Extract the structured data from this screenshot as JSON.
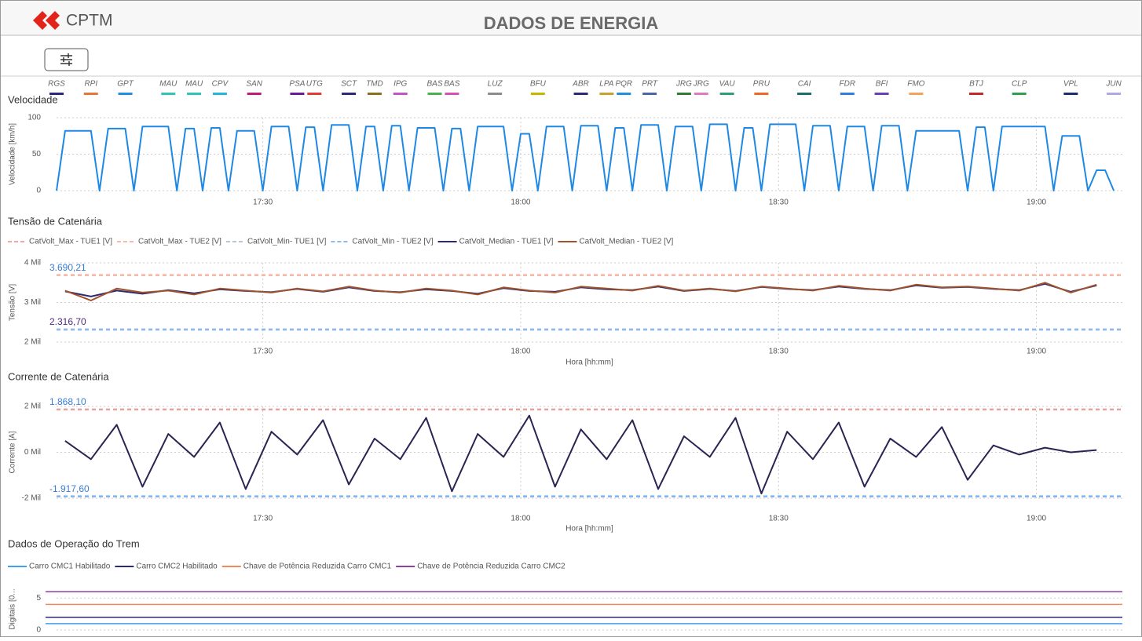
{
  "header": {
    "logo_text": "CPTM",
    "title": "DADOS DE ENERGIA"
  },
  "chart_data": [
    {
      "type": "line",
      "title": "Velocidade",
      "ylabel": "Velocidade [km/h]",
      "color": "#1e88e5",
      "grid": true,
      "xlim": [
        "17:06",
        "19:10"
      ],
      "xticks": [
        "17:30",
        "18:00",
        "18:30",
        "19:00"
      ],
      "ylim": [
        0,
        100
      ],
      "yticks": [
        0,
        50,
        100
      ],
      "x": [
        "17:06",
        "17:07",
        "17:10",
        "17:11",
        "17:12",
        "17:14",
        "17:15",
        "17:16",
        "17:19",
        "17:20",
        "17:21",
        "17:22",
        "17:23",
        "17:24",
        "17:25",
        "17:26",
        "17:27",
        "17:29",
        "17:30",
        "17:31",
        "17:33",
        "17:34",
        "17:35",
        "17:36",
        "17:37",
        "17:38",
        "17:40",
        "17:41",
        "17:42",
        "17:43",
        "17:44",
        "17:45",
        "17:46",
        "17:47",
        "17:48",
        "17:50",
        "17:51",
        "17:52",
        "17:53",
        "17:54",
        "17:55",
        "17:58",
        "17:59",
        "18:00",
        "18:01",
        "18:02",
        "18:03",
        "18:05",
        "18:06",
        "18:07",
        "18:09",
        "18:10",
        "18:11",
        "18:12",
        "18:13",
        "18:14",
        "18:16",
        "18:17",
        "18:18",
        "18:20",
        "18:21",
        "18:22",
        "18:24",
        "18:25",
        "18:26",
        "18:27",
        "18:28",
        "18:29",
        "18:32",
        "18:33",
        "18:34",
        "18:36",
        "18:37",
        "18:38",
        "18:40",
        "18:41",
        "18:42",
        "18:44",
        "18:45",
        "18:46",
        "18:51",
        "18:52",
        "18:53",
        "18:54",
        "18:55",
        "18:56",
        "19:01",
        "19:02",
        "19:03",
        "19:05",
        "19:06",
        "19:07",
        "19:08",
        "19:09"
      ],
      "values": [
        0,
        82,
        82,
        0,
        85,
        85,
        0,
        88,
        88,
        0,
        85,
        85,
        0,
        86,
        86,
        0,
        82,
        82,
        0,
        88,
        88,
        0,
        87,
        87,
        0,
        90,
        90,
        0,
        88,
        88,
        0,
        89,
        89,
        0,
        86,
        86,
        0,
        85,
        85,
        0,
        88,
        88,
        0,
        78,
        78,
        0,
        88,
        88,
        0,
        89,
        89,
        0,
        86,
        86,
        0,
        90,
        90,
        0,
        88,
        88,
        0,
        91,
        91,
        0,
        86,
        86,
        0,
        91,
        91,
        0,
        89,
        89,
        0,
        88,
        88,
        0,
        89,
        89,
        0,
        82,
        82,
        0,
        87,
        87,
        0,
        88,
        88,
        0,
        75,
        75,
        0,
        28,
        28,
        0
      ],
      "stations": [
        {
          "label": "RGS",
          "x": "17:06",
          "color": "#2b2a7a"
        },
        {
          "label": "RPI",
          "x": "17:10",
          "color": "#e8743b"
        },
        {
          "label": "GPT",
          "x": "17:14",
          "color": "#1f8fe0"
        },
        {
          "label": "MAU",
          "x": "17:19",
          "color": "#2ec4b6"
        },
        {
          "label": "MAU",
          "x": "17:22",
          "color": "#2ec4b6"
        },
        {
          "label": "CPV",
          "x": "17:25",
          "color": "#1fb8d8"
        },
        {
          "label": "SAN",
          "x": "17:29",
          "color": "#c2197a"
        },
        {
          "label": "PSA",
          "x": "17:34",
          "color": "#6a1b9a"
        },
        {
          "label": "UTG",
          "x": "17:36",
          "color": "#e53935"
        },
        {
          "label": "SCT",
          "x": "17:40",
          "color": "#2b2a7a"
        },
        {
          "label": "TMD",
          "x": "17:43",
          "color": "#8d6e1f"
        },
        {
          "label": "IPG",
          "x": "17:46",
          "color": "#c653c6"
        },
        {
          "label": "BAS",
          "x": "17:50",
          "color": "#4caf50"
        },
        {
          "label": "BAS",
          "x": "17:52",
          "color": "#d54fb5"
        },
        {
          "label": "LUZ",
          "x": "17:57",
          "color": "#8c8c8c"
        },
        {
          "label": "BFU",
          "x": "18:02",
          "color": "#c8b600"
        },
        {
          "label": "ABR",
          "x": "18:07",
          "color": "#2b2a7a"
        },
        {
          "label": "LPA",
          "x": "18:10",
          "color": "#c9a227"
        },
        {
          "label": "PQR",
          "x": "18:12",
          "color": "#1f8fe0"
        },
        {
          "label": "PRT",
          "x": "18:15",
          "color": "#4a66a8"
        },
        {
          "label": "JRG",
          "x": "18:19",
          "color": "#2e7d32"
        },
        {
          "label": "JRG",
          "x": "18:21",
          "color": "#e07ac0"
        },
        {
          "label": "VAU",
          "x": "18:24",
          "color": "#2e9e78"
        },
        {
          "label": "PRU",
          "x": "18:28",
          "color": "#f26522"
        },
        {
          "label": "CAI",
          "x": "18:33",
          "color": "#1a6e6e"
        },
        {
          "label": "FDR",
          "x": "18:38",
          "color": "#2f7de1"
        },
        {
          "label": "BFI",
          "x": "18:42",
          "color": "#6a3fb5"
        },
        {
          "label": "FMO",
          "x": "18:46",
          "color": "#f4a259"
        },
        {
          "label": "BTJ",
          "x": "18:53",
          "color": "#c62828"
        },
        {
          "label": "CLP",
          "x": "18:58",
          "color": "#2e9e4f"
        },
        {
          "label": "VPL",
          "x": "19:04",
          "color": "#1a2e6e"
        },
        {
          "label": "JUN",
          "x": "19:09",
          "color": "#b3a6e8"
        }
      ]
    },
    {
      "type": "line",
      "title": "Tensão de Catenária",
      "xlabel": "Hora [hh:mm]",
      "ylabel": "Tensão [V]",
      "grid": true,
      "xlim": [
        "17:06",
        "19:10"
      ],
      "xticks": [
        "17:30",
        "18:00",
        "18:30",
        "19:00"
      ],
      "ylim": [
        2000,
        4000
      ],
      "yticks": [
        {
          "value": 2000,
          "label": "2 Mil"
        },
        {
          "value": 3000,
          "label": "3 Mil"
        },
        {
          "value": 4000,
          "label": "4 Mil"
        }
      ],
      "reference_lines": [
        {
          "name": "CatVolt_Max - TUE1 [V]",
          "color": "#f4a6a6",
          "value": 3690.21,
          "value_label": "3.690,21",
          "label_color": "#3a7bd5"
        },
        {
          "name": "CatVolt_Max - TUE2 [V]",
          "color": "#f7b9a8",
          "value": 3690.21
        },
        {
          "name": "CatVolt_Min- TUE1 [V]",
          "color": "#b8c6d4",
          "value": 2316.7,
          "value_label": "2.316,70",
          "label_color": "#4b2a7a"
        },
        {
          "name": "CatVolt_Min - TUE2 [V]",
          "color": "#8fb8f0",
          "value": 2316.7
        }
      ],
      "x": [
        "17:07",
        "17:10",
        "17:13",
        "17:16",
        "17:19",
        "17:22",
        "17:25",
        "17:28",
        "17:31",
        "17:34",
        "17:37",
        "17:40",
        "17:43",
        "17:46",
        "17:49",
        "17:52",
        "17:55",
        "17:58",
        "18:01",
        "18:04",
        "18:07",
        "18:10",
        "18:13",
        "18:16",
        "18:19",
        "18:22",
        "18:25",
        "18:28",
        "18:31",
        "18:34",
        "18:37",
        "18:40",
        "18:43",
        "18:46",
        "18:49",
        "18:52",
        "18:55",
        "18:58",
        "19:01",
        "19:04",
        "19:07"
      ],
      "series": [
        {
          "name": "CatVolt_Median - TUE1 [V]",
          "color": "#2b2a6e",
          "values": [
            3280,
            3150,
            3300,
            3220,
            3310,
            3230,
            3330,
            3290,
            3260,
            3340,
            3270,
            3380,
            3290,
            3260,
            3330,
            3290,
            3220,
            3360,
            3290,
            3270,
            3380,
            3330,
            3310,
            3400,
            3290,
            3340,
            3290,
            3390,
            3340,
            3310,
            3400,
            3340,
            3310,
            3430,
            3370,
            3390,
            3340,
            3310,
            3470,
            3270,
            3430
          ]
        },
        {
          "name": "CatVolt_Median - TUE2 [V]",
          "color": "#a0522d",
          "values": [
            3300,
            3050,
            3350,
            3250,
            3300,
            3200,
            3350,
            3300,
            3250,
            3350,
            3280,
            3400,
            3300,
            3250,
            3350,
            3300,
            3200,
            3380,
            3300,
            3250,
            3400,
            3350,
            3300,
            3420,
            3300,
            3350,
            3280,
            3400,
            3350,
            3300,
            3420,
            3350,
            3300,
            3450,
            3380,
            3400,
            3350,
            3300,
            3500,
            3250,
            3450
          ]
        }
      ]
    },
    {
      "type": "line",
      "title": "Corrente de Catenária",
      "xlabel": "Hora [hh:mm]",
      "ylabel": "Corrente [A]",
      "grid": true,
      "color": "#2b2352",
      "xlim": [
        "17:06",
        "19:10"
      ],
      "xticks": [
        "17:30",
        "18:00",
        "18:30",
        "19:00"
      ],
      "ylim": [
        -2000,
        2000
      ],
      "yticks": [
        {
          "value": -2000,
          "label": "-2 Mil"
        },
        {
          "value": 0,
          "label": "0 Mil"
        },
        {
          "value": 2000,
          "label": "2 Mil"
        }
      ],
      "reference_lines": [
        {
          "color": "#e8a0a0",
          "value": 1868.1,
          "value_label": "1.868,10",
          "label_color": "#3a7bd5"
        },
        {
          "color": "#7fb3f0",
          "value": -1917.6,
          "value_label": "-1.917,60",
          "label_color": "#3a7bd5"
        }
      ],
      "x": [
        "17:07",
        "17:10",
        "17:13",
        "17:16",
        "17:19",
        "17:22",
        "17:25",
        "17:28",
        "17:31",
        "17:34",
        "17:37",
        "17:40",
        "17:43",
        "17:46",
        "17:49",
        "17:52",
        "17:55",
        "17:58",
        "18:01",
        "18:04",
        "18:07",
        "18:10",
        "18:13",
        "18:16",
        "18:19",
        "18:22",
        "18:25",
        "18:28",
        "18:31",
        "18:34",
        "18:37",
        "18:40",
        "18:43",
        "18:46",
        "18:49",
        "18:52",
        "18:55",
        "18:58",
        "19:01",
        "19:04",
        "19:07"
      ],
      "values": [
        500,
        -300,
        1200,
        -1500,
        800,
        -200,
        1300,
        -1600,
        900,
        -100,
        1400,
        -1400,
        600,
        -300,
        1500,
        -1700,
        800,
        -200,
        1600,
        -1500,
        1000,
        -300,
        1400,
        -1600,
        700,
        -200,
        1500,
        -1800,
        900,
        -300,
        1300,
        -1500,
        600,
        -200,
        1100,
        -1200,
        300,
        -100,
        200,
        0,
        100
      ]
    },
    {
      "type": "line",
      "title": "Dados de Operação do Trem",
      "ylabel": "Digitais [0...",
      "grid": true,
      "ylim": [
        0,
        6.5
      ],
      "yticks": [
        0,
        5
      ],
      "series": [
        {
          "name": "Carro CMC1 Habilitado",
          "color": "#3fa0f0",
          "value": 1
        },
        {
          "name": "Carro CMC2 Habilitado",
          "color": "#2b2a7a",
          "value": 2
        },
        {
          "name": "Chave de Potência Reduzida Carro CMC1",
          "color": "#f08a5d",
          "value": 4
        },
        {
          "name": "Chave de Potência Reduzida Carro CMC2",
          "color": "#8e3fa0",
          "value": 6
        }
      ]
    }
  ]
}
